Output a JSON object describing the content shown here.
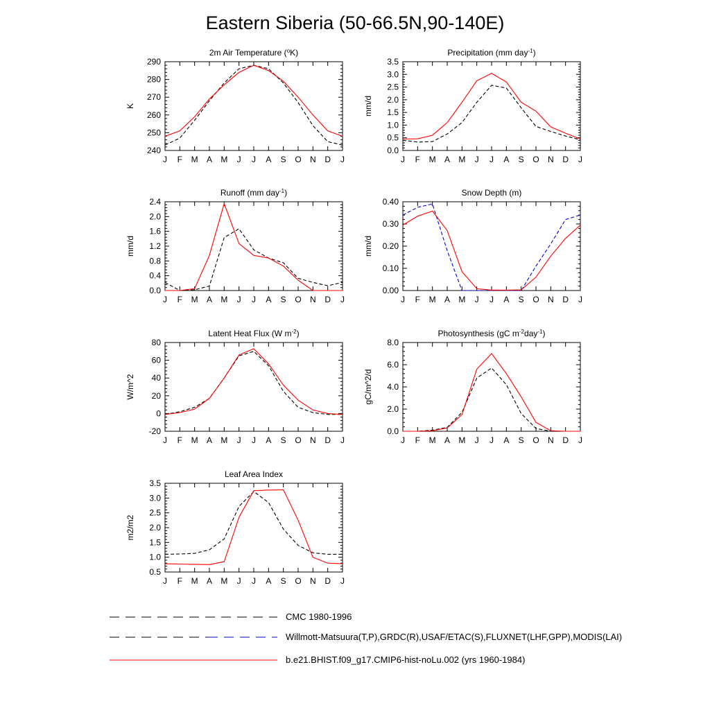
{
  "page": {
    "title": "Eastern Siberia (50-66.5N,90-140E)"
  },
  "legend": [
    {
      "label": "CMC 1980-1996",
      "color": "#000000",
      "dash": "dashed",
      "second_color": ""
    },
    {
      "label": "Willmott-Matsuura(T,P),GRDC(R),USAF/ETAC(S),FLUXNET(LHF,GPP),MODIS(LAI)",
      "color": "#000000",
      "dash": "dashed",
      "second_color": "#0000cc"
    },
    {
      "label": "b.e21.BHIST.f09_g17.CMIP6-hist-noLu.002 (yrs 1960-1984)",
      "color": "#ff0000",
      "dash": "solid",
      "second_color": ""
    }
  ],
  "chart_data": [
    {
      "type": "line",
      "title": {
        "pre": "2m Air Temperature (",
        "sup": "o",
        "post": "K)"
      },
      "ylabel": "K",
      "x": [
        "J",
        "F",
        "M",
        "A",
        "M",
        "J",
        "J",
        "A",
        "S",
        "O",
        "N",
        "D",
        "J"
      ],
      "ylim": [
        240,
        290
      ],
      "yticks": [
        "240",
        "250",
        "260",
        "270",
        "280",
        "290"
      ],
      "grid": false,
      "series": [
        {
          "color": "#ff0000",
          "dash": "solid",
          "values": [
            248,
            251,
            259,
            269,
            277,
            284,
            288,
            285,
            279,
            270,
            260,
            251,
            248
          ]
        },
        {
          "color": "#000000",
          "dash": "dashed",
          "values": [
            243,
            247,
            257,
            268,
            278,
            286,
            288,
            286,
            278,
            267,
            254,
            245,
            243
          ]
        }
      ]
    },
    {
      "type": "line",
      "title": {
        "pre": "Precipitation (mm day",
        "sup": "-1",
        "post": ")"
      },
      "ylabel": "mm/d",
      "x": [
        "J",
        "F",
        "M",
        "A",
        "M",
        "J",
        "J",
        "A",
        "S",
        "O",
        "N",
        "D",
        "J"
      ],
      "ylim": [
        0,
        3.5
      ],
      "yticks": [
        "0.0",
        "0.5",
        "1.0",
        "1.5",
        "2.0",
        "2.5",
        "3.0",
        "3.5"
      ],
      "grid": false,
      "series": [
        {
          "color": "#ff0000",
          "dash": "solid",
          "values": [
            0.45,
            0.46,
            0.6,
            1.1,
            1.9,
            2.75,
            3.04,
            2.7,
            1.9,
            1.55,
            0.93,
            0.68,
            0.45
          ]
        },
        {
          "color": "#000000",
          "dash": "dashed",
          "values": [
            0.4,
            0.33,
            0.35,
            0.65,
            1.1,
            1.9,
            2.57,
            2.46,
            1.68,
            0.95,
            0.75,
            0.57,
            0.42
          ]
        }
      ]
    },
    {
      "type": "line",
      "title": {
        "pre": "Runoff (mm day",
        "sup": "-1",
        "post": ")"
      },
      "ylabel": "mm/d",
      "x": [
        "J",
        "F",
        "M",
        "A",
        "M",
        "J",
        "J",
        "A",
        "S",
        "O",
        "N",
        "D",
        "J"
      ],
      "ylim": [
        0,
        2.4
      ],
      "yticks": [
        "0.0",
        "0.4",
        "0.8",
        "1.2",
        "1.6",
        "2.0",
        "2.4"
      ],
      "grid": false,
      "series": [
        {
          "color": "#ff0000",
          "dash": "solid",
          "values": [
            0.0,
            0.0,
            0.05,
            0.95,
            2.35,
            1.27,
            0.95,
            0.88,
            0.66,
            0.28,
            0.0,
            0.0,
            0.0
          ]
        },
        {
          "color": "#000000",
          "dash": "dashed",
          "values": [
            0.22,
            0.0,
            0.02,
            0.12,
            1.43,
            1.67,
            1.1,
            0.88,
            0.75,
            0.33,
            0.22,
            0.13,
            0.22
          ]
        }
      ]
    },
    {
      "type": "line",
      "title": {
        "pre": "Snow Depth (m)",
        "sup": "",
        "post": ""
      },
      "ylabel": "mm/d",
      "x": [
        "J",
        "F",
        "M",
        "A",
        "M",
        "J",
        "J",
        "A",
        "S",
        "O",
        "N",
        "D",
        "J"
      ],
      "ylim": [
        0,
        0.4
      ],
      "yticks": [
        "0.00",
        "0.10",
        "0.20",
        "0.30",
        "0.40"
      ],
      "grid": false,
      "series": [
        {
          "color": "#ff0000",
          "dash": "solid",
          "values": [
            0.295,
            0.335,
            0.358,
            0.27,
            0.085,
            0.008,
            0.002,
            0.002,
            0.003,
            0.06,
            0.155,
            0.235,
            0.295
          ]
        },
        {
          "color": "#0000cc",
          "dash": "dashed",
          "values": [
            0.34,
            0.375,
            0.39,
            0.18,
            0.0,
            0.0,
            0.0,
            0.0,
            0.0,
            0.11,
            0.21,
            0.32,
            0.34
          ]
        },
        {
          "color": "#000000",
          "dash": "dashed",
          "values": [
            0.0,
            0.0,
            0.0,
            0.0,
            0.0,
            0.0,
            0.0,
            0.0,
            0.0,
            0.0,
            0.0,
            0.0,
            0.0
          ]
        }
      ]
    },
    {
      "type": "line",
      "title": {
        "pre": "Latent Heat Flux (W m",
        "sup": "-2",
        "post": ")"
      },
      "ylabel": "W/m^2",
      "x": [
        "J",
        "F",
        "M",
        "A",
        "M",
        "J",
        "J",
        "A",
        "S",
        "O",
        "N",
        "D",
        "J"
      ],
      "ylim": [
        -20,
        80
      ],
      "yticks": [
        "-20",
        "0",
        "20",
        "40",
        "60",
        "80"
      ],
      "grid": false,
      "series": [
        {
          "color": "#ff0000",
          "dash": "solid",
          "values": [
            -1,
            1,
            5,
            17,
            40,
            66,
            73,
            56,
            32,
            15,
            4,
            0,
            -1
          ]
        },
        {
          "color": "#000000",
          "dash": "dashed",
          "values": [
            -1,
            2,
            7,
            17,
            40,
            65,
            70,
            54,
            25,
            7,
            1,
            -1,
            -1
          ]
        }
      ]
    },
    {
      "type": "line",
      "title": {
        "pre": "Photosynthesis (gC m",
        "sup": "-2",
        "post": "day",
        "sup2": "-1",
        "post2": ")"
      },
      "ylabel": "gC/m^2/d",
      "x": [
        "J",
        "F",
        "M",
        "A",
        "M",
        "J",
        "J",
        "A",
        "S",
        "O",
        "N",
        "D",
        "J"
      ],
      "ylim": [
        0,
        8
      ],
      "yticks": [
        "0.0",
        "2.0",
        "4.0",
        "6.0",
        "8.0"
      ],
      "grid": false,
      "series": [
        {
          "color": "#ff0000",
          "dash": "solid",
          "values": [
            0.0,
            0.0,
            0.05,
            0.3,
            1.5,
            5.6,
            7.0,
            5.2,
            3.1,
            0.8,
            0.05,
            0.0,
            0.0
          ]
        },
        {
          "color": "#000000",
          "dash": "dashed",
          "values": [
            0.0,
            0.0,
            0.1,
            0.35,
            1.7,
            4.8,
            5.7,
            4.2,
            1.6,
            0.25,
            0.0,
            0.0,
            0.0
          ]
        }
      ]
    },
    {
      "type": "line",
      "title": {
        "pre": "Leaf Area Index",
        "sup": "",
        "post": ""
      },
      "ylabel": "m2/m2",
      "x": [
        "J",
        "F",
        "M",
        "A",
        "M",
        "J",
        "J",
        "A",
        "S",
        "O",
        "N",
        "D",
        "J"
      ],
      "ylim": [
        0.5,
        3.5
      ],
      "yticks": [
        "0.5",
        "1.0",
        "1.5",
        "2.0",
        "2.5",
        "3.0",
        "3.5"
      ],
      "grid": false,
      "series": [
        {
          "color": "#ff0000",
          "dash": "solid",
          "values": [
            0.78,
            0.77,
            0.76,
            0.75,
            0.85,
            2.35,
            3.25,
            3.27,
            3.28,
            2.25,
            1.0,
            0.8,
            0.78
          ]
        },
        {
          "color": "#000000",
          "dash": "dashed",
          "values": [
            1.1,
            1.11,
            1.13,
            1.25,
            1.62,
            2.72,
            3.22,
            2.85,
            1.95,
            1.4,
            1.15,
            1.1,
            1.1
          ]
        }
      ]
    }
  ]
}
